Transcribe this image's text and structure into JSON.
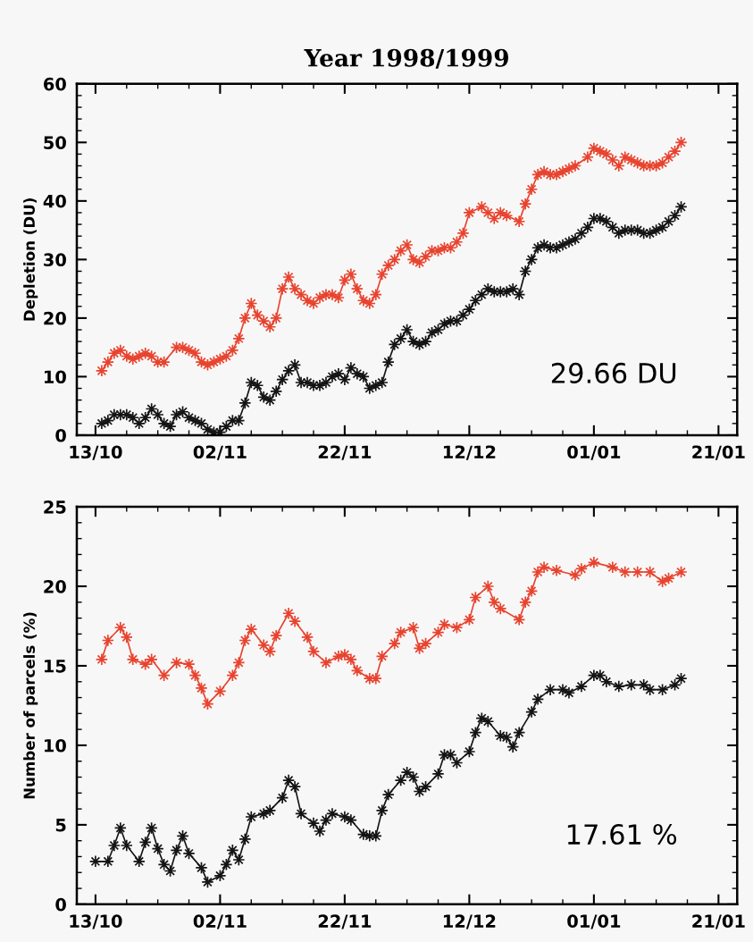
{
  "chart_data": [
    {
      "type": "line",
      "title": "Year 1998/1999",
      "ylabel": "Depletion (DU)",
      "marker": "star",
      "xlim": [
        "1998-10-10",
        "1999-01-24"
      ],
      "ylim": [
        0,
        60
      ],
      "yticks": [
        0,
        10,
        20,
        30,
        40,
        50,
        60
      ],
      "xticks": [
        {
          "value": "1998-10-13",
          "label": "13/10"
        },
        {
          "value": "1998-11-02",
          "label": "02/11"
        },
        {
          "value": "1998-11-22",
          "label": "22/11"
        },
        {
          "value": "1998-12-12",
          "label": "12/12"
        },
        {
          "value": "1999-01-01",
          "label": "01/01"
        },
        {
          "value": "1999-01-21",
          "label": "21/01"
        }
      ],
      "annotations": [
        "29.66 DU"
      ],
      "series": [
        {
          "color": "#e8432e",
          "x": [
            "1998-10-14",
            "1998-10-15",
            "1998-10-16",
            "1998-10-17",
            "1998-10-18",
            "1998-10-19",
            "1998-10-20",
            "1998-10-21",
            "1998-10-22",
            "1998-10-23",
            "1998-10-24",
            "1998-10-26",
            "1998-10-27",
            "1998-10-28",
            "1998-10-29",
            "1998-10-30",
            "1998-10-31",
            "1998-11-01",
            "1998-11-02",
            "1998-11-03",
            "1998-11-04",
            "1998-11-05",
            "1998-11-06",
            "1998-11-07",
            "1998-11-08",
            "1998-11-09",
            "1998-11-10",
            "1998-11-11",
            "1998-11-12",
            "1998-11-13",
            "1998-11-14",
            "1998-11-15",
            "1998-11-16",
            "1998-11-17",
            "1998-11-18",
            "1998-11-19",
            "1998-11-20",
            "1998-11-21",
            "1998-11-22",
            "1998-11-23",
            "1998-11-24",
            "1998-11-25",
            "1998-11-26",
            "1998-11-27",
            "1998-11-28",
            "1998-11-29",
            "1998-11-30",
            "1998-12-01",
            "1998-12-02",
            "1998-12-03",
            "1998-12-04",
            "1998-12-05",
            "1998-12-06",
            "1998-12-07",
            "1998-12-08",
            "1998-12-09",
            "1998-12-10",
            "1998-12-11",
            "1998-12-12",
            "1998-12-14",
            "1998-12-15",
            "1998-12-16",
            "1998-12-17",
            "1998-12-18",
            "1998-12-20",
            "1998-12-21",
            "1998-12-22",
            "1998-12-23",
            "1998-12-24",
            "1998-12-25",
            "1998-12-26",
            "1998-12-27",
            "1998-12-28",
            "1998-12-29",
            "1998-12-31",
            "1999-01-01",
            "1999-01-02",
            "1999-01-03",
            "1999-01-04",
            "1999-01-05",
            "1999-01-06",
            "1999-01-07",
            "1999-01-08",
            "1999-01-09",
            "1999-01-10",
            "1999-01-11",
            "1999-01-12",
            "1999-01-13",
            "1999-01-14",
            "1999-01-15"
          ],
          "values": [
            11,
            12.5,
            14,
            14.5,
            13.5,
            13,
            13.5,
            14,
            13.5,
            12.5,
            12.5,
            15,
            15,
            14.5,
            14,
            12.5,
            12,
            12.5,
            13,
            13.5,
            14.5,
            16.5,
            20,
            22.5,
            20.5,
            19.5,
            18.5,
            20,
            25,
            27,
            25,
            24,
            23,
            22.5,
            23.5,
            24,
            24,
            23.5,
            26.5,
            27.5,
            25,
            23,
            22.5,
            24,
            27.5,
            29,
            30,
            31.5,
            32.5,
            30,
            29.5,
            30.5,
            31.5,
            31.5,
            32,
            32,
            33,
            34.5,
            38,
            39,
            38,
            37,
            38,
            37.5,
            36.5,
            39.5,
            42,
            44.5,
            45,
            44.5,
            44.5,
            45,
            45.5,
            46,
            47.5,
            49,
            48.5,
            48,
            47,
            46,
            47.5,
            47,
            46.5,
            46,
            46,
            46,
            46.5,
            47.5,
            48.5,
            50
          ]
        },
        {
          "color": "#141414",
          "x": [
            "1998-10-14",
            "1998-10-15",
            "1998-10-16",
            "1998-10-17",
            "1998-10-18",
            "1998-10-19",
            "1998-10-20",
            "1998-10-21",
            "1998-10-22",
            "1998-10-23",
            "1998-10-24",
            "1998-10-25",
            "1998-10-26",
            "1998-10-27",
            "1998-10-28",
            "1998-10-29",
            "1998-10-30",
            "1998-10-31",
            "1998-11-01",
            "1998-11-02",
            "1998-11-03",
            "1998-11-04",
            "1998-11-05",
            "1998-11-06",
            "1998-11-07",
            "1998-11-08",
            "1998-11-09",
            "1998-11-10",
            "1998-11-11",
            "1998-11-12",
            "1998-11-13",
            "1998-11-14",
            "1998-11-15",
            "1998-11-16",
            "1998-11-17",
            "1998-11-18",
            "1998-11-19",
            "1998-11-20",
            "1998-11-21",
            "1998-11-22",
            "1998-11-23",
            "1998-11-24",
            "1998-11-25",
            "1998-11-26",
            "1998-11-27",
            "1998-11-28",
            "1998-11-29",
            "1998-11-30",
            "1998-12-01",
            "1998-12-02",
            "1998-12-03",
            "1998-12-04",
            "1998-12-05",
            "1998-12-06",
            "1998-12-07",
            "1998-12-08",
            "1998-12-09",
            "1998-12-10",
            "1998-12-11",
            "1998-12-12",
            "1998-12-13",
            "1998-12-14",
            "1998-12-15",
            "1998-12-16",
            "1998-12-17",
            "1998-12-18",
            "1998-12-19",
            "1998-12-20",
            "1998-12-21",
            "1998-12-22",
            "1998-12-23",
            "1998-12-24",
            "1998-12-25",
            "1998-12-26",
            "1998-12-27",
            "1998-12-28",
            "1998-12-29",
            "1998-12-30",
            "1998-12-31",
            "1999-01-01",
            "1999-01-02",
            "1999-01-03",
            "1999-01-04",
            "1999-01-05",
            "1999-01-06",
            "1999-01-07",
            "1999-01-08",
            "1999-01-09",
            "1999-01-10",
            "1999-01-11",
            "1999-01-12",
            "1999-01-13",
            "1999-01-14",
            "1999-01-15"
          ],
          "values": [
            2,
            2.5,
            3.5,
            3.5,
            3.5,
            3,
            2,
            3,
            4.5,
            3.5,
            2,
            1.5,
            3.5,
            4,
            3,
            2.5,
            2,
            1,
            0.5,
            0.5,
            1.5,
            2.5,
            2.5,
            5.5,
            9,
            8.5,
            6.5,
            6,
            7.5,
            9.5,
            11,
            12,
            9,
            9,
            8.5,
            8.5,
            9,
            10,
            10.5,
            9.5,
            11.5,
            10.5,
            10,
            8,
            8.5,
            9,
            12.5,
            15.5,
            16.5,
            18,
            16,
            15.5,
            16,
            17.5,
            18,
            19,
            19.5,
            19.5,
            20.5,
            21.5,
            23,
            24,
            25,
            24.5,
            24.5,
            24.5,
            25,
            24,
            28,
            30,
            32,
            32.5,
            32,
            32,
            32.5,
            33,
            33.5,
            34.5,
            35.5,
            37,
            37,
            36.5,
            35.5,
            34.5,
            35,
            35,
            35,
            34.5,
            34.5,
            35,
            35.5,
            36.5,
            37.5,
            39
          ]
        }
      ]
    },
    {
      "type": "line",
      "ylabel": "Number of parcels (%)",
      "marker": "star",
      "xlim": [
        "1998-10-10",
        "1999-01-24"
      ],
      "ylim": [
        0,
        25
      ],
      "yticks": [
        0,
        5,
        10,
        15,
        20,
        25
      ],
      "xticks": [
        {
          "value": "1998-10-13",
          "label": "13/10"
        },
        {
          "value": "1998-11-02",
          "label": "02/11"
        },
        {
          "value": "1998-11-22",
          "label": "22/11"
        },
        {
          "value": "1998-12-12",
          "label": "12/12"
        },
        {
          "value": "1999-01-01",
          "label": "01/01"
        },
        {
          "value": "1999-01-21",
          "label": "21/01"
        }
      ],
      "annotations": [
        "17.61 %"
      ],
      "series": [
        {
          "color": "#e8432e",
          "x": [
            "1998-10-14",
            "1998-10-15",
            "1998-10-17",
            "1998-10-18",
            "1998-10-19",
            "1998-10-21",
            "1998-10-22",
            "1998-10-24",
            "1998-10-26",
            "1998-10-28",
            "1998-10-29",
            "1998-10-30",
            "1998-10-31",
            "1998-11-02",
            "1998-11-04",
            "1998-11-05",
            "1998-11-06",
            "1998-11-07",
            "1998-11-09",
            "1998-11-10",
            "1998-11-11",
            "1998-11-13",
            "1998-11-14",
            "1998-11-16",
            "1998-11-17",
            "1998-11-19",
            "1998-11-21",
            "1998-11-22",
            "1998-11-23",
            "1998-11-24",
            "1998-11-26",
            "1998-11-27",
            "1998-11-28",
            "1998-11-30",
            "1998-12-01",
            "1998-12-03",
            "1998-12-04",
            "1998-12-05",
            "1998-12-07",
            "1998-12-08",
            "1998-12-10",
            "1998-12-12",
            "1998-12-13",
            "1998-12-15",
            "1998-12-16",
            "1998-12-17",
            "1998-12-20",
            "1998-12-21",
            "1998-12-22",
            "1998-12-23",
            "1998-12-24",
            "1998-12-26",
            "1998-12-29",
            "1998-12-30",
            "1999-01-01",
            "1999-01-04",
            "1999-01-06",
            "1999-01-08",
            "1999-01-10",
            "1999-01-12",
            "1999-01-13",
            "1999-01-15"
          ],
          "values": [
            15.4,
            16.6,
            17.4,
            16.8,
            15.4,
            15.1,
            15.4,
            14.4,
            15.2,
            15.1,
            14.4,
            13.6,
            12.6,
            13.4,
            14.4,
            15.2,
            16.6,
            17.3,
            16.3,
            15.9,
            16.9,
            18.3,
            17.8,
            16.8,
            15.9,
            15.2,
            15.6,
            15.7,
            15.4,
            14.7,
            14.2,
            14.2,
            15.6,
            16.4,
            17.1,
            17.4,
            16.1,
            16.4,
            17.1,
            17.6,
            17.4,
            17.9,
            19.3,
            20,
            19,
            18.6,
            17.9,
            19,
            19.7,
            20.9,
            21.2,
            21,
            20.7,
            21.1,
            21.5,
            21.2,
            20.9,
            20.9,
            20.9,
            20.3,
            20.5,
            20.9
          ]
        },
        {
          "color": "#141414",
          "x": [
            "1998-10-13",
            "1998-10-15",
            "1998-10-16",
            "1998-10-17",
            "1998-10-18",
            "1998-10-20",
            "1998-10-21",
            "1998-10-22",
            "1998-10-23",
            "1998-10-24",
            "1998-10-25",
            "1998-10-26",
            "1998-10-27",
            "1998-10-28",
            "1998-10-30",
            "1998-10-31",
            "1998-11-02",
            "1998-11-03",
            "1998-11-04",
            "1998-11-05",
            "1998-11-06",
            "1998-11-07",
            "1998-11-09",
            "1998-11-10",
            "1998-11-12",
            "1998-11-13",
            "1998-11-14",
            "1998-11-15",
            "1998-11-17",
            "1998-11-18",
            "1998-11-19",
            "1998-11-20",
            "1998-11-22",
            "1998-11-23",
            "1998-11-25",
            "1998-11-26",
            "1998-11-27",
            "1998-11-28",
            "1998-11-29",
            "1998-12-01",
            "1998-12-02",
            "1998-12-03",
            "1998-12-04",
            "1998-12-05",
            "1998-12-07",
            "1998-12-08",
            "1998-12-09",
            "1998-12-10",
            "1998-12-12",
            "1998-12-13",
            "1998-12-14",
            "1998-12-15",
            "1998-12-17",
            "1998-12-18",
            "1998-12-19",
            "1998-12-20",
            "1998-12-22",
            "1998-12-23",
            "1998-12-25",
            "1998-12-27",
            "1998-12-28",
            "1998-12-30",
            "1999-01-01",
            "1999-01-02",
            "1999-01-03",
            "1999-01-05",
            "1999-01-07",
            "1999-01-09",
            "1999-01-10",
            "1999-01-12",
            "1999-01-14",
            "1999-01-15"
          ],
          "values": [
            2.7,
            2.7,
            3.7,
            4.8,
            3.7,
            2.7,
            3.9,
            4.8,
            3.5,
            2.5,
            2.1,
            3.4,
            4.3,
            3.2,
            2.3,
            1.4,
            1.8,
            2.5,
            3.4,
            2.8,
            4.1,
            5.5,
            5.7,
            5.9,
            6.7,
            7.8,
            7.4,
            5.7,
            5.1,
            4.6,
            5.3,
            5.7,
            5.5,
            5.3,
            4.4,
            4.3,
            4.3,
            5.9,
            6.9,
            7.8,
            8.3,
            8.0,
            7.1,
            7.4,
            8.2,
            9.4,
            9.4,
            8.9,
            9.6,
            10.8,
            11.7,
            11.5,
            10.6,
            10.5,
            9.9,
            10.8,
            12.1,
            12.9,
            13.5,
            13.5,
            13.3,
            13.7,
            14.4,
            14.4,
            14,
            13.7,
            13.8,
            13.8,
            13.5,
            13.5,
            13.8,
            14.2
          ]
        }
      ]
    }
  ]
}
